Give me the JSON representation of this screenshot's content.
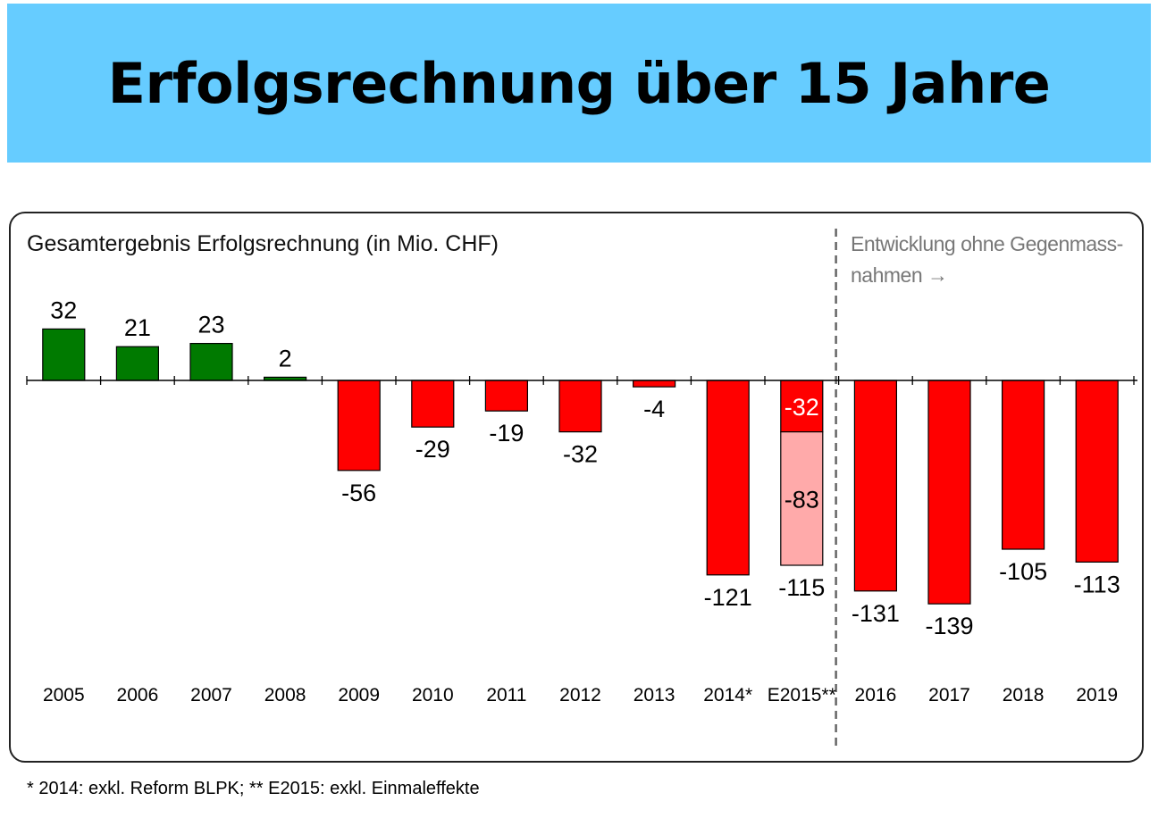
{
  "page_title": "Erfolgsrechnung über 15 Jahre",
  "footnote": "* 2014: exkl. Reform BLPK; ** E2015: exkl. Einmaleffekte",
  "chart_data": {
    "type": "bar",
    "title": "Gesamtergebnis Erfolgsrechnung (in Mio. CHF)",
    "annotation": "Entwicklung ohne Gegenmass-\nnahmen →",
    "categories": [
      "2005",
      "2006",
      "2007",
      "2008",
      "2009",
      "2010",
      "2011",
      "2012",
      "2013",
      "2014*",
      "E2015**",
      "2016",
      "2017",
      "2018",
      "2019"
    ],
    "values": [
      32,
      21,
      23,
      2,
      -56,
      -29,
      -19,
      -32,
      -4,
      -121,
      -115,
      -131,
      -139,
      -105,
      -113
    ],
    "stacked_segments": {
      "category": "E2015**",
      "parts": [
        -32,
        -83
      ],
      "total": -115
    },
    "colors": {
      "positive": "#007A00",
      "negative": "#FF0000",
      "secondary": "#FFAAAA",
      "divider": "#666666"
    },
    "divider_after_category": "E2015**",
    "ylim": [
      -160,
      40
    ],
    "grid": false,
    "legend": "none"
  }
}
